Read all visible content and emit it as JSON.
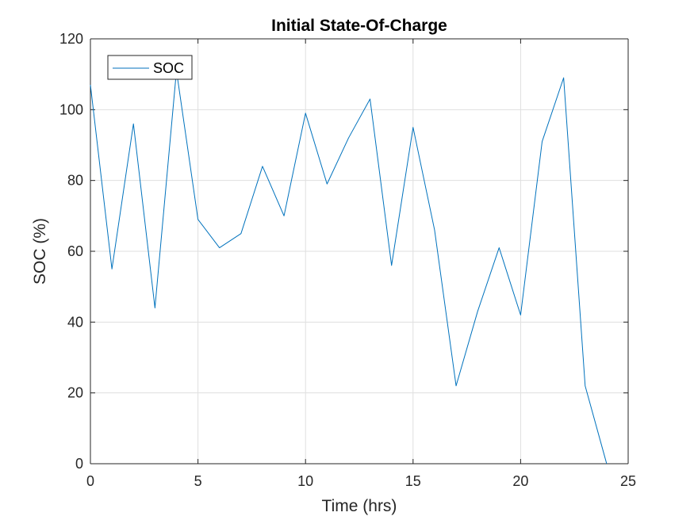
{
  "chart_data": {
    "type": "line",
    "title": "Initial State-Of-Charge",
    "xlabel": "Time (hrs)",
    "ylabel": "SOC (%)",
    "xlim": [
      0,
      25
    ],
    "ylim": [
      0,
      120
    ],
    "xticks": [
      0,
      5,
      10,
      15,
      20,
      25
    ],
    "yticks": [
      0,
      20,
      40,
      60,
      80,
      100,
      120
    ],
    "xtick_labels": [
      "0",
      "5",
      "10",
      "15",
      "20",
      "25"
    ],
    "ytick_labels": [
      "0",
      "20",
      "40",
      "60",
      "80",
      "100",
      "120"
    ],
    "grid": true,
    "legend_position": "top-left",
    "series": [
      {
        "name": "SOC",
        "color": "#0072bd",
        "x": [
          0,
          1,
          2,
          3,
          4,
          5,
          6,
          7,
          8,
          9,
          10,
          11,
          12,
          13,
          14,
          15,
          16,
          17,
          18,
          19,
          20,
          21,
          22,
          23,
          24
        ],
        "y": [
          107,
          55,
          96,
          44,
          111,
          69,
          61,
          65,
          84,
          70,
          99,
          79,
          92,
          103,
          56,
          95,
          66,
          22,
          43,
          61,
          42,
          91,
          109,
          22,
          0
        ]
      }
    ]
  }
}
